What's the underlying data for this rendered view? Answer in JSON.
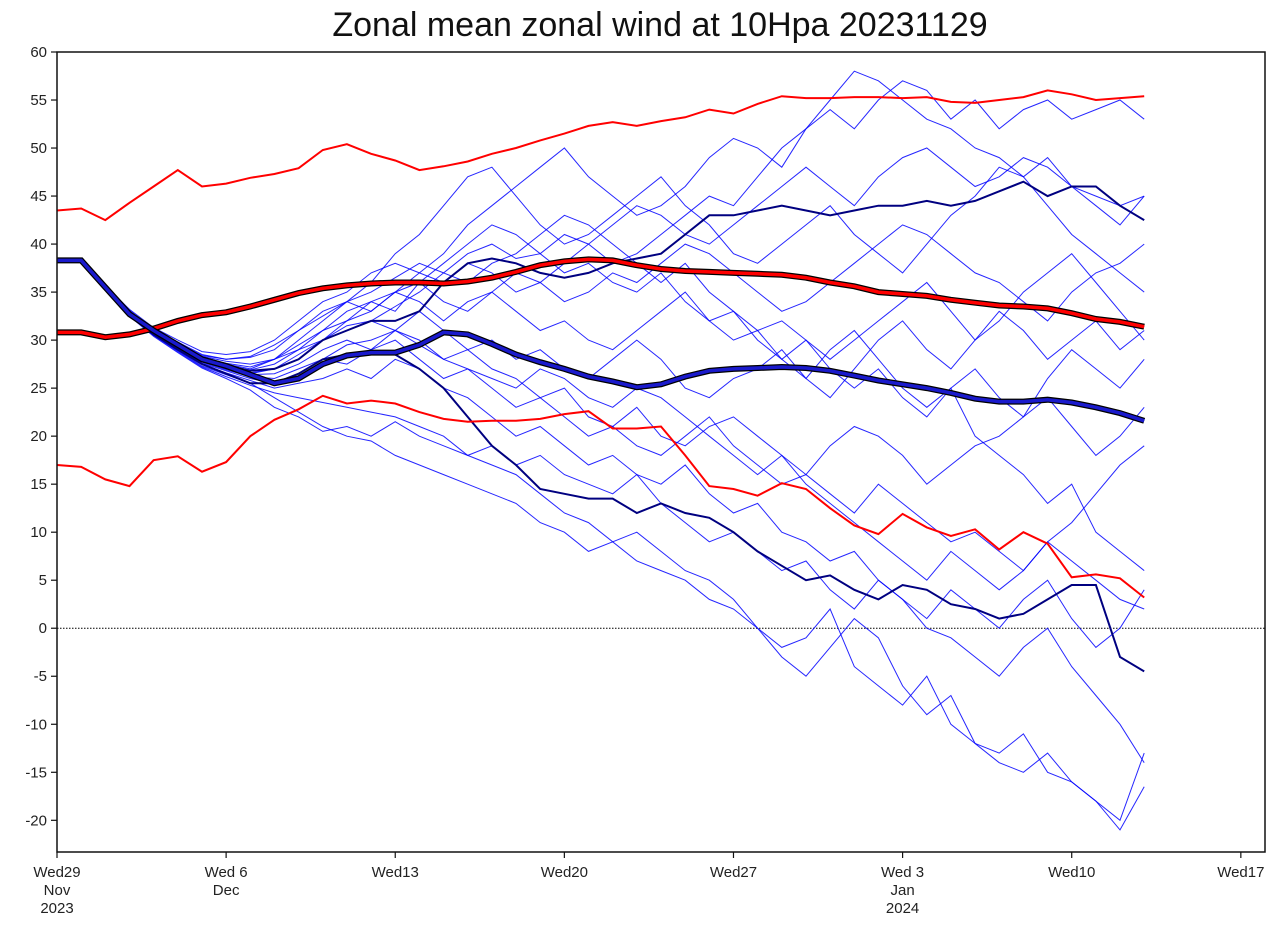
{
  "chart_data": {
    "type": "line",
    "title": "Zonal mean zonal wind at 10Hpa 20231129",
    "xlabel": "",
    "ylabel": "",
    "ylim": [
      -23.3,
      60
    ],
    "xlim": [
      "2023-11-29",
      "2024-01-18"
    ],
    "grid": false,
    "y_ticks": [
      60,
      55,
      50,
      45,
      40,
      35,
      30,
      25,
      20,
      15,
      10,
      5,
      0,
      -5,
      -10,
      -15,
      -20
    ],
    "x_ticks": [
      {
        "date": "2023-11-29",
        "line1": "Wed29",
        "line2": "Nov",
        "line3": "2023"
      },
      {
        "date": "2023-12-06",
        "line1": "Wed 6",
        "line2": "Dec",
        "line3": ""
      },
      {
        "date": "2023-12-13",
        "line1": "Wed13",
        "line2": "",
        "line3": ""
      },
      {
        "date": "2023-12-20",
        "line1": "Wed20",
        "line2": "",
        "line3": ""
      },
      {
        "date": "2023-12-27",
        "line1": "Wed27",
        "line2": "",
        "line3": ""
      },
      {
        "date": "2024-01-03",
        "line1": "Wed 3",
        "line2": "Jan",
        "line3": "2024"
      },
      {
        "date": "2024-01-10",
        "line1": "Wed10",
        "line2": "",
        "line3": ""
      },
      {
        "date": "2024-01-17",
        "line1": "Wed17",
        "line2": "",
        "line3": ""
      }
    ],
    "reference_line": {
      "y": 0,
      "style": "dotted",
      "color": "#000000"
    },
    "colors": {
      "members": "#0000ff",
      "highlight_members": "#000080",
      "climatology": "#ff0000",
      "outline": "#000000",
      "ensemble_mean": "#1a1acc"
    },
    "x": [
      "2023-11-29",
      "2023-11-30",
      "2023-12-01",
      "2023-12-02",
      "2023-12-03",
      "2023-12-04",
      "2023-12-05",
      "2023-12-06",
      "2023-12-07",
      "2023-12-08",
      "2023-12-09",
      "2023-12-10",
      "2023-12-11",
      "2023-12-12",
      "2023-12-13",
      "2023-12-14",
      "2023-12-15",
      "2023-12-16",
      "2023-12-17",
      "2023-12-18",
      "2023-12-19",
      "2023-12-20",
      "2023-12-21",
      "2023-12-22",
      "2023-12-23",
      "2023-12-24",
      "2023-12-25",
      "2023-12-26",
      "2023-12-27",
      "2023-12-28",
      "2023-12-29",
      "2023-12-30",
      "2023-12-31",
      "2024-01-01",
      "2024-01-02",
      "2024-01-03",
      "2024-01-04",
      "2024-01-05",
      "2024-01-06",
      "2024-01-07",
      "2024-01-08",
      "2024-01-09",
      "2024-01-10",
      "2024-01-11",
      "2024-01-12",
      "2024-01-13"
    ],
    "climatology_max": [
      43.5,
      43.7,
      42.5,
      44.3,
      46,
      47.7,
      46,
      46.3,
      46.9,
      47.3,
      47.9,
      49.8,
      50.4,
      49.4,
      48.7,
      47.7,
      48.1,
      48.6,
      49.4,
      50,
      50.8,
      51.5,
      52.3,
      52.7,
      52.3,
      52.8,
      53.2,
      54,
      53.6,
      54.6,
      55.4,
      55.2,
      55.2,
      55.3,
      55.3,
      55.2,
      55.3,
      54.8,
      54.7,
      55,
      55.3,
      56,
      55.6,
      55,
      55.2,
      55.4
    ],
    "climatology_mean": [
      30.8,
      30.8,
      30.3,
      30.6,
      31.2,
      32,
      32.6,
      32.9,
      33.5,
      34.2,
      34.9,
      35.4,
      35.7,
      35.9,
      36,
      36,
      35.9,
      36.1,
      36.5,
      37.1,
      37.8,
      38.2,
      38.4,
      38.3,
      37.8,
      37.4,
      37.2,
      37.1,
      37,
      36.9,
      36.8,
      36.5,
      36,
      35.6,
      35,
      34.8,
      34.6,
      34.2,
      33.9,
      33.6,
      33.5,
      33.3,
      32.8,
      32.2,
      31.9,
      31.4
    ],
    "climatology_min": [
      17,
      16.8,
      15.5,
      14.8,
      17.5,
      17.9,
      16.3,
      17.3,
      20,
      21.7,
      22.8,
      24.2,
      23.4,
      23.7,
      23.4,
      22.5,
      21.8,
      21.5,
      21.6,
      21.6,
      21.8,
      22.3,
      22.6,
      20.8,
      20.8,
      21,
      18,
      14.8,
      14.5,
      13.8,
      15.1,
      14.5,
      12.5,
      10.7,
      9.8,
      11.9,
      10.5,
      9.6,
      10.3,
      8.2,
      10,
      8.8,
      5.3,
      5.6,
      5.2,
      3.2
    ],
    "ensemble_mean": [
      38.3,
      38.3,
      35.5,
      32.7,
      31,
      29.5,
      28,
      27.3,
      26.4,
      25.5,
      26,
      27.5,
      28.4,
      28.7,
      28.7,
      29.5,
      30.8,
      30.6,
      29.6,
      28.5,
      27.7,
      27,
      26.2,
      25.7,
      25.1,
      25.4,
      26.2,
      26.8,
      27,
      27.1,
      27.2,
      27.1,
      26.8,
      26.3,
      25.8,
      25.4,
      25,
      24.5,
      23.9,
      23.6,
      23.6,
      23.8,
      23.5,
      23,
      22.4,
      21.6
    ],
    "highlight_members": [
      [
        38.3,
        38.3,
        35.6,
        32.9,
        31,
        29.5,
        28.1,
        27.4,
        26.8,
        27,
        28,
        30,
        31,
        32,
        32,
        33,
        36,
        38,
        38.5,
        38,
        37,
        36.5,
        37,
        38,
        38.5,
        39,
        41,
        43,
        43,
        43.5,
        44,
        43.5,
        43,
        43.5,
        44,
        44,
        44.5,
        44,
        44.5,
        45.5,
        46.5,
        45,
        46,
        46,
        44,
        42.5
      ],
      [
        38.3,
        38.3,
        35.4,
        32.6,
        30.6,
        29,
        27.5,
        26.5,
        25.5,
        25.5,
        26.5,
        28,
        28.5,
        28.5,
        28.5,
        27,
        25,
        22,
        19,
        17,
        14.5,
        14,
        13.5,
        13.5,
        12,
        13,
        12,
        11.5,
        10,
        8,
        6.5,
        5,
        5.5,
        4,
        3,
        4.5,
        4,
        2.5,
        2,
        1,
        1.5,
        3,
        4.5,
        4.5,
        -3,
        -4.5
      ]
    ],
    "members": [
      [
        38.3,
        38.3,
        35.8,
        33,
        31.2,
        29.8,
        28.5,
        28,
        28.2,
        29,
        31,
        33,
        34,
        35,
        36.5,
        38,
        37,
        39,
        40,
        38.5,
        39,
        41,
        40,
        38,
        39,
        41,
        43,
        45,
        44,
        47,
        50,
        52,
        54,
        52,
        55,
        57,
        56,
        53,
        55,
        52,
        54,
        55,
        53,
        54,
        55,
        53
      ],
      [
        38.3,
        38.3,
        35.5,
        32.8,
        30.8,
        29.2,
        27.8,
        27,
        26.5,
        27,
        28,
        30,
        32,
        34,
        33,
        36,
        38,
        40,
        42,
        41,
        39,
        37,
        38,
        36,
        35,
        37,
        34,
        32,
        33,
        30,
        28,
        30,
        27,
        25,
        27,
        24,
        22,
        25,
        20,
        18,
        16,
        13,
        15,
        10,
        8,
        6
      ],
      [
        38.3,
        38.3,
        35.3,
        32.5,
        30.5,
        28.8,
        27.2,
        26.2,
        25.3,
        24.5,
        24,
        23.5,
        23,
        22.5,
        22,
        21,
        20,
        18,
        17,
        16,
        14,
        12,
        11,
        9,
        10,
        8,
        6,
        5,
        3,
        0,
        -2,
        -1,
        2,
        -4,
        -6,
        -8,
        -5,
        -10,
        -12,
        -13,
        -11,
        -15,
        -16,
        -18,
        -21,
        -16.5
      ],
      [
        38.3,
        38.3,
        35.6,
        33,
        31,
        29.6,
        28.3,
        27.8,
        27.5,
        28,
        29.5,
        31,
        32,
        33,
        35,
        37,
        39,
        42,
        44,
        46,
        48,
        50,
        47,
        45,
        43,
        44,
        46,
        49,
        51,
        50,
        48,
        52,
        55,
        58,
        57,
        55,
        53,
        52,
        50,
        49,
        47,
        49,
        46,
        45,
        44,
        45
      ],
      [
        38.3,
        38.3,
        35.4,
        32.6,
        30.6,
        29,
        27.5,
        26.6,
        25.8,
        25,
        25.5,
        26,
        27,
        26,
        28,
        27,
        25,
        24,
        22,
        20,
        21,
        19,
        17,
        18,
        16,
        15,
        17,
        14,
        12,
        13,
        10,
        9,
        7,
        8,
        5,
        3,
        0,
        -1,
        -3,
        -5,
        -2,
        0,
        -4,
        -7,
        -10,
        -14
      ],
      [
        38.3,
        38.3,
        35.7,
        33.2,
        31.3,
        30,
        28.8,
        28.5,
        28.8,
        30,
        32,
        34,
        35,
        37,
        38,
        37,
        36,
        38,
        37,
        35,
        36,
        34,
        35,
        37,
        36,
        38,
        40,
        39,
        37,
        35,
        33,
        34,
        36,
        38,
        40,
        42,
        41,
        39,
        37,
        36,
        34,
        32,
        35,
        37,
        38,
        40
      ],
      [
        38.3,
        38.3,
        35.5,
        32.7,
        30.7,
        29.1,
        27.6,
        26.8,
        26,
        25.5,
        26.5,
        28,
        29.5,
        30,
        31,
        29.5,
        28,
        29,
        27,
        26,
        24,
        25,
        22,
        21,
        23,
        20,
        19,
        21,
        22,
        20,
        18,
        16,
        19,
        21,
        20,
        18,
        15,
        17,
        19,
        20,
        22,
        24,
        21,
        18,
        20,
        23
      ],
      [
        38.3,
        38.3,
        35.6,
        32.9,
        30.9,
        29.4,
        28,
        27.3,
        26.9,
        27.5,
        29,
        31,
        33,
        34,
        35,
        36,
        34,
        33,
        35,
        33,
        31,
        32,
        30,
        29,
        31,
        33,
        35,
        32,
        30,
        31,
        28,
        26,
        29,
        31,
        28,
        25,
        23,
        25,
        27,
        24,
        22,
        26,
        29,
        27,
        25,
        28
      ],
      [
        38.3,
        38.3,
        35.4,
        32.6,
        30.5,
        28.9,
        27.3,
        26.4,
        25.5,
        24,
        22.5,
        21,
        20,
        19.5,
        18,
        17,
        16,
        15,
        14,
        13,
        11,
        10,
        8,
        9,
        7,
        6,
        5,
        3,
        2,
        0,
        -3,
        -5,
        -2,
        1,
        -1,
        -6,
        -9,
        -7,
        -12,
        -14,
        -15,
        -13,
        -16,
        -18,
        -20,
        -13
      ],
      [
        38.3,
        38.3,
        35.7,
        33.1,
        31.1,
        29.7,
        28.4,
        28,
        28.3,
        29.5,
        31,
        32.5,
        34,
        33,
        35,
        34,
        32,
        34,
        35,
        37,
        36,
        38,
        40,
        42,
        44,
        43,
        41,
        40,
        42,
        44,
        46,
        48,
        46,
        44,
        47,
        49,
        50,
        48,
        46,
        47,
        49,
        48,
        46,
        44,
        42,
        45
      ],
      [
        38.3,
        38.3,
        35.5,
        32.7,
        30.7,
        29.1,
        27.7,
        26.9,
        26.2,
        26,
        27,
        28,
        27.5,
        29,
        30,
        28,
        26,
        27,
        25,
        23,
        24,
        22,
        20,
        21,
        19,
        18,
        20,
        22,
        19,
        17,
        15,
        16,
        14,
        12,
        15,
        13,
        11,
        9,
        10,
        8,
        6,
        9,
        7,
        5,
        3,
        2
      ],
      [
        38.3,
        38.3,
        35.6,
        32.8,
        30.8,
        29.3,
        27.9,
        27.1,
        26.6,
        27,
        28.5,
        30,
        31,
        32,
        31,
        33,
        31,
        29,
        30,
        28,
        29,
        27,
        26,
        28,
        30,
        28,
        25,
        24,
        26,
        27,
        29,
        26,
        24,
        27,
        30,
        32,
        29,
        27,
        30,
        33,
        31,
        28,
        30,
        32,
        29,
        31
      ],
      [
        38.3,
        38.3,
        35.4,
        32.5,
        30.4,
        28.7,
        27.1,
        26,
        24.8,
        23,
        22,
        20.5,
        21,
        20,
        21.5,
        20,
        19,
        18,
        19,
        17,
        18,
        16,
        15,
        14,
        16,
        13,
        11,
        9,
        10,
        8,
        6,
        7,
        4,
        2,
        5,
        3,
        1,
        4,
        2,
        0,
        3,
        5,
        1,
        -2,
        0,
        4
      ],
      [
        38.3,
        38.3,
        35.6,
        33,
        31,
        29.5,
        28.2,
        27.6,
        27.2,
        28,
        30,
        32,
        34,
        36,
        39,
        41,
        44,
        47,
        48,
        45,
        42,
        40,
        41,
        43,
        45,
        47,
        44,
        42,
        39,
        38,
        40,
        42,
        44,
        41,
        39,
        37,
        40,
        43,
        45,
        48,
        47,
        44,
        41,
        39,
        37,
        35
      ],
      [
        38.3,
        38.3,
        35.5,
        32.8,
        30.8,
        29.2,
        27.8,
        27,
        26.4,
        26.5,
        27.5,
        29,
        30,
        29,
        31,
        30,
        28,
        27,
        26,
        25,
        27,
        26,
        24,
        23,
        25,
        24,
        22,
        20,
        18,
        16,
        18,
        15,
        13,
        11,
        9,
        7,
        5,
        8,
        6,
        4,
        6,
        9,
        11,
        14,
        17,
        19
      ],
      [
        38.3,
        38.3,
        35.6,
        32.9,
        30.9,
        29.5,
        28.1,
        27.5,
        27,
        28,
        29,
        30,
        31.5,
        32,
        33.5,
        35,
        37,
        36,
        38,
        39,
        41,
        43,
        42,
        40,
        38,
        36,
        38,
        35,
        33,
        31,
        32,
        30,
        28,
        30,
        32,
        34,
        36,
        33,
        30,
        32,
        35,
        37,
        39,
        36,
        33,
        30
      ]
    ]
  }
}
